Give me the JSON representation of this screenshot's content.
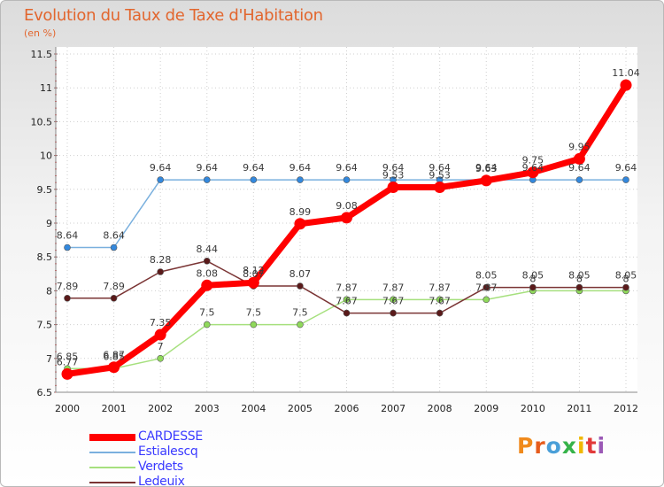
{
  "chart_data": {
    "type": "line",
    "title": "Evolution du Taux de Taxe d'Habitation",
    "ylabel": "(en %)",
    "xlabel": "",
    "ylim": [
      6.5,
      11.5
    ],
    "yticks": [
      "6.5",
      "7",
      "7.5",
      "8",
      "8.5",
      "9",
      "9.5",
      "10",
      "10.5",
      "11",
      "11.5"
    ],
    "categories": [
      "2000",
      "2001",
      "2002",
      "2003",
      "2004",
      "2005",
      "2006",
      "2007",
      "2008",
      "2009",
      "2010",
      "2011",
      "2012"
    ],
    "series": [
      {
        "name": "CARDESSE",
        "color": "#ff0000",
        "marker": "#ff0000",
        "values": [
          6.77,
          6.87,
          7.35,
          8.08,
          8.12,
          8.99,
          9.08,
          9.53,
          9.53,
          9.63,
          9.75,
          9.95,
          11.04
        ],
        "labels": [
          "6.77",
          "6.87",
          "7.35",
          "8.08",
          "8.12",
          "8.99",
          "9.08",
          "9.53",
          "9.53",
          "9.63",
          "9.75",
          "9.95",
          "11.04"
        ]
      },
      {
        "name": "Estialescq",
        "color": "#7ab0de",
        "marker": "#3388dd",
        "values": [
          8.64,
          8.64,
          9.64,
          9.64,
          9.64,
          9.64,
          9.64,
          9.64,
          9.64,
          9.64,
          9.64,
          9.64,
          9.64
        ],
        "labels": [
          "8.64",
          "8.64",
          "9.64",
          "9.64",
          "9.64",
          "9.64",
          "9.64",
          "9.64",
          "9.64",
          "9.64",
          "9.64",
          "9.64",
          "9.64"
        ]
      },
      {
        "name": "Verdets",
        "color": "#a6e07e",
        "marker": "#8fd95a",
        "values": [
          6.85,
          6.85,
          7,
          7.5,
          7.5,
          7.5,
          7.87,
          7.87,
          7.87,
          7.87,
          8,
          8,
          8
        ],
        "labels": [
          "6.85",
          "6.85",
          "7",
          "7.5",
          "7.5",
          "7.5",
          "7.87",
          "7.87",
          "7.87",
          "7.87",
          "8",
          "8",
          "8"
        ]
      },
      {
        "name": "Ledeuix",
        "color": "#7a3434",
        "marker": "#5a1a1a",
        "values": [
          7.89,
          7.89,
          8.28,
          8.44,
          8.07,
          8.07,
          7.67,
          7.67,
          7.67,
          8.05,
          8.05,
          8.05,
          8.05
        ],
        "labels": [
          "7.89",
          "7.89",
          "8.28",
          "8.44",
          "8.07",
          "8.07",
          "7.67",
          "7.67",
          "7.67",
          "8.05",
          "8.05",
          "8.05",
          "8.05"
        ]
      }
    ]
  },
  "legend": {
    "items": [
      {
        "label": "CARDESSE",
        "color": "#ff0000"
      },
      {
        "label": "Estialescq",
        "color": "#7ab0de"
      },
      {
        "label": "Verdets",
        "color": "#a6e07e"
      },
      {
        "label": "Ledeuix",
        "color": "#7a3434"
      }
    ]
  },
  "logo": {
    "text": "Proxiti",
    "colors": [
      "#f08a1c",
      "#e65c1c",
      "#4a9fd8",
      "#36b34a",
      "#f0b800",
      "#e23a3a",
      "#9b59b6"
    ]
  }
}
